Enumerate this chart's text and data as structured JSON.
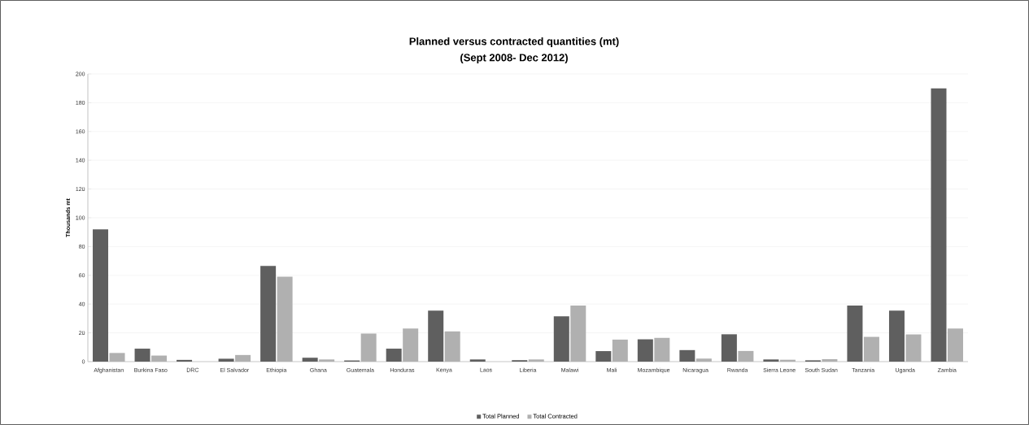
{
  "chart_data": {
    "type": "bar",
    "title": "Planned versus contracted quantities (mt)",
    "subtitle": "(Sept 2008- Dec 2012)",
    "ylabel": "Thousands mt",
    "categories": [
      "Afghanistan",
      "Burkina Faso",
      "DRC",
      "El Salvador",
      "Ethiopia",
      "Ghana",
      "Guatemala",
      "Honduras",
      "Kenya",
      "Laos",
      "Liberia",
      "Malawi",
      "Mali",
      "Mozambique",
      "Nicaragua",
      "Rwanda",
      "Sierra Leone",
      "South Sudan",
      "Tanzania",
      "Uganda",
      "Zambia"
    ],
    "series": [
      {
        "name": "Total Planned",
        "color": "#5f5f5f",
        "values": [
          92,
          9,
          1.2,
          2,
          66.5,
          2.7,
          0.8,
          9,
          35.5,
          1.5,
          1,
          31.5,
          7.3,
          15.5,
          8,
          19,
          1.5,
          0.9,
          39,
          35.5,
          190
        ]
      },
      {
        "name": "Total Contracted",
        "color": "#b0b0b0",
        "values": [
          6,
          4.2,
          0,
          4.6,
          59,
          1.5,
          19.5,
          23,
          21,
          0,
          1.5,
          39,
          15.3,
          16.5,
          2.1,
          7.4,
          1.3,
          1.7,
          17.2,
          18.9,
          23
        ]
      }
    ],
    "ylim": [
      0,
      200
    ],
    "yticks": [
      0,
      20,
      40,
      60,
      80,
      100,
      120,
      140,
      160,
      180,
      200
    ],
    "grid": "y",
    "legend": "bottom"
  }
}
